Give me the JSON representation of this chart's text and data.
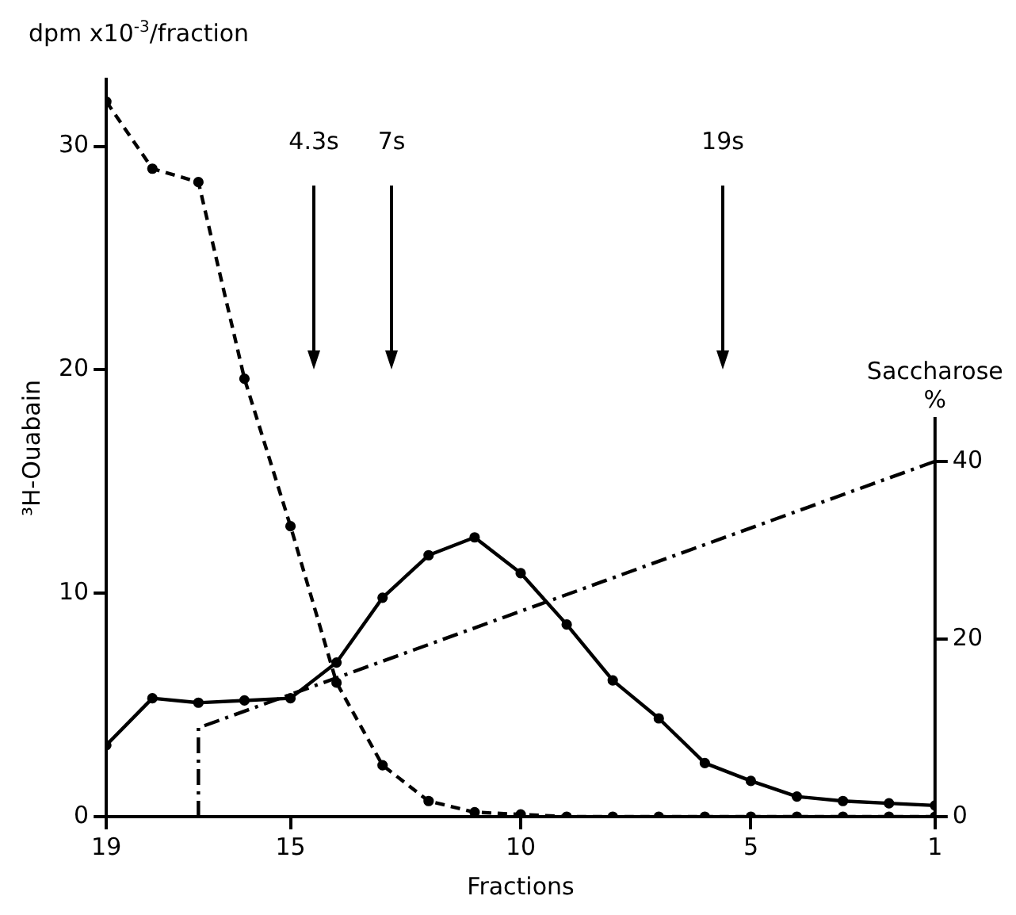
{
  "chart_data": {
    "type": "line",
    "ylabel": "³H-Ouabain",
    "xlabel": "Fractions",
    "y2label": "Saccharose %",
    "annotations": [
      "dpm x10$^{-3}$/fraction",
      "4.3s",
      "7s",
      "19s"
    ],
    "series": [
      {
        "color": "#000000",
        "line_style": "dashed",
        "marker": "circle",
        "x": [
          19,
          18,
          17,
          16,
          15,
          14,
          13,
          12,
          11,
          10,
          9,
          8,
          7,
          6,
          5,
          4,
          3,
          2,
          1
        ],
        "values": [
          32.0,
          29.0,
          28.4,
          19.6,
          13.0,
          6.0,
          2.3,
          0.7,
          0.2,
          0.1,
          0,
          0,
          0,
          0,
          0,
          0,
          0,
          0,
          0
        ]
      },
      {
        "color": "#000000",
        "line_style": "solid",
        "marker": "circle",
        "x": [
          19,
          18,
          17,
          16,
          15,
          14,
          13,
          12,
          11,
          10,
          9,
          8,
          7,
          6,
          5,
          4,
          3,
          2,
          1
        ],
        "values": [
          3.2,
          5.3,
          5.1,
          5.2,
          5.3,
          6.9,
          9.8,
          11.7,
          12.5,
          10.9,
          8.6,
          6.1,
          4.4,
          2.4,
          1.6,
          0.9,
          0.7,
          0.6,
          0.5
        ]
      },
      {
        "color": "#000000",
        "line_style": "dashdot",
        "marker": "none",
        "axis": "y2",
        "x": [
          17,
          17,
          1
        ],
        "values": [
          0,
          10,
          40
        ]
      }
    ],
    "xlim": [
      19,
      1
    ],
    "xticks": [
      19,
      15,
      10,
      5,
      1
    ],
    "ylim": [
      0,
      33
    ],
    "yticks": [
      0,
      10,
      20,
      30
    ],
    "y2lim": [
      0,
      83
    ],
    "y2ticks": [
      0,
      20,
      40
    ],
    "grid": false,
    "legend": false
  }
}
